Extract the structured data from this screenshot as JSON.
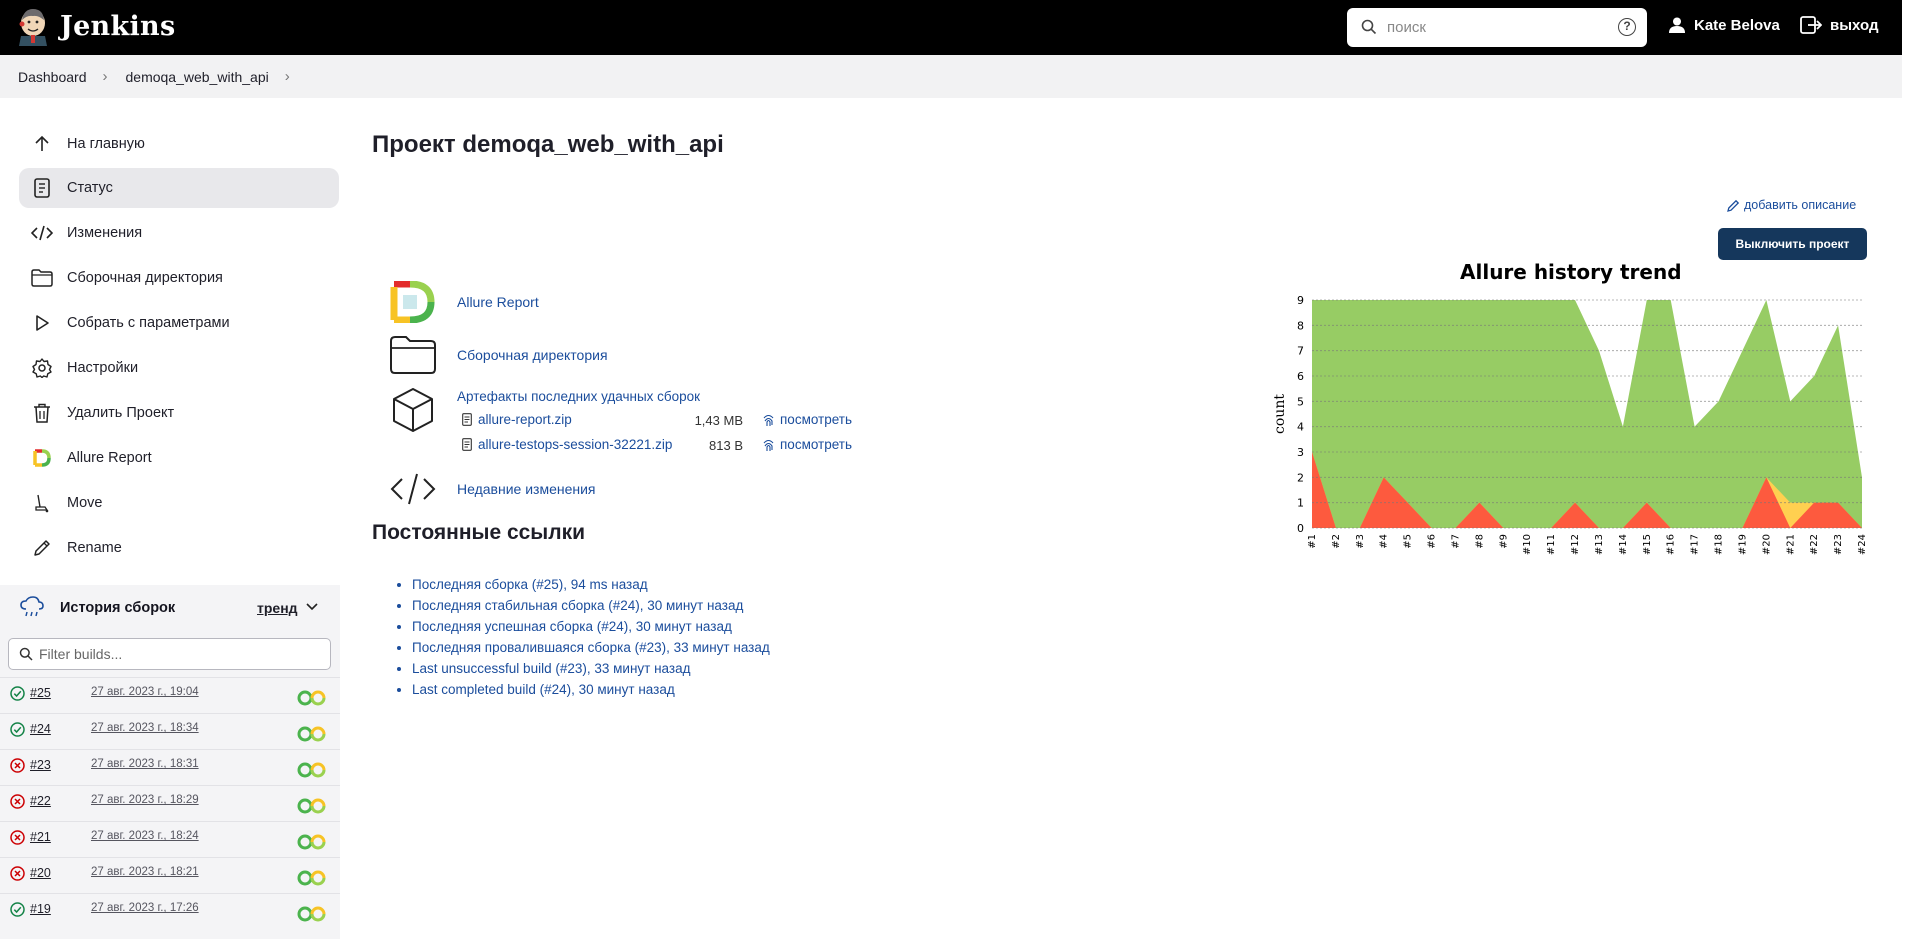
{
  "header": {
    "brand": "Jenkins",
    "search_placeholder": "поиск",
    "help": "?",
    "user": "Kate Belova",
    "logout": "выход"
  },
  "breadcrumb": [
    "Dashboard",
    "demoqa_web_with_api"
  ],
  "sidebar": {
    "items": [
      {
        "label": "На главную",
        "icon": "arrow-up-icon"
      },
      {
        "label": "Статус",
        "icon": "document-icon"
      },
      {
        "label": "Изменения",
        "icon": "code-icon"
      },
      {
        "label": "Сборочная директория",
        "icon": "folder-icon"
      },
      {
        "label": "Собрать с параметрами",
        "icon": "play-icon"
      },
      {
        "label": "Настройки",
        "icon": "gear-icon"
      },
      {
        "label": "Удалить Проект",
        "icon": "trash-icon"
      },
      {
        "label": "Allure Report",
        "icon": "allure-icon"
      },
      {
        "label": "Move",
        "icon": "move-icon"
      },
      {
        "label": "Rename",
        "icon": "pencil-icon"
      }
    ],
    "history": {
      "title": "История сборок",
      "trend": "тренд",
      "filter_placeholder": "Filter builds...",
      "builds": [
        {
          "num": "#25",
          "date": "27 авг. 2023 г., 19:04",
          "status": "success"
        },
        {
          "num": "#24",
          "date": "27 авг. 2023 г., 18:34",
          "status": "success"
        },
        {
          "num": "#23",
          "date": "27 авг. 2023 г., 18:31",
          "status": "failed"
        },
        {
          "num": "#22",
          "date": "27 авг. 2023 г., 18:29",
          "status": "failed"
        },
        {
          "num": "#21",
          "date": "27 авг. 2023 г., 18:24",
          "status": "failed"
        },
        {
          "num": "#20",
          "date": "27 авг. 2023 г., 18:21",
          "status": "failed"
        },
        {
          "num": "#19",
          "date": "27 авг. 2023 г., 17:26",
          "status": "success"
        }
      ]
    }
  },
  "main": {
    "title": "Проект demoqa_web_with_api",
    "add_description": "добавить описание",
    "disable_button": "Выключить проект",
    "links": {
      "allure": "Allure Report",
      "workspace": "Сборочная директория",
      "artifacts": "Артефакты последних удачных сборок",
      "changes": "Недавние изменения"
    },
    "artifacts": [
      {
        "name": "allure-report.zip",
        "size": "1,43 MB",
        "view": "посмотреть"
      },
      {
        "name": "allure-testops-session-32221.zip",
        "size": "813 B",
        "view": "посмотреть"
      }
    ],
    "permalinks_title": "Постоянные ссылки",
    "permalinks": [
      "Последняя сборка (#25), 94 ms назад",
      "Последняя стабильная сборка (#24), 30 минут назад",
      "Последняя успешная сборка (#24), 30 минут назад",
      "Последняя провалившаяся сборка (#23), 33 минут назад",
      "Last unsuccessful build (#23), 33 минут назад",
      "Last completed build (#24), 30 минут назад"
    ]
  },
  "chart_data": {
    "type": "area",
    "title": "Allure history trend",
    "ylabel": "count",
    "xlabel": "",
    "ylim": [
      0,
      9
    ],
    "grid": true,
    "categories": [
      "#1",
      "#2",
      "#3",
      "#4",
      "#5",
      "#6",
      "#7",
      "#8",
      "#9",
      "#10",
      "#11",
      "#12",
      "#13",
      "#14",
      "#15",
      "#16",
      "#17",
      "#18",
      "#19",
      "#20",
      "#21",
      "#22",
      "#23",
      "#24"
    ],
    "series": [
      {
        "color": "#fd5a3e",
        "values": [
          3,
          0,
          0,
          2,
          1,
          0,
          0,
          1,
          0,
          0,
          0,
          1,
          0,
          0,
          1,
          0,
          0,
          0,
          0,
          2,
          0,
          1,
          1,
          0
        ]
      },
      {
        "color": "#ffd050",
        "values": [
          0,
          0,
          0,
          0,
          0,
          0,
          0,
          0,
          0,
          0,
          0,
          0,
          0,
          0,
          0,
          0,
          0,
          0,
          0,
          0,
          1,
          0,
          0,
          0
        ]
      },
      {
        "color": "#97cc64",
        "values": [
          9,
          9,
          9,
          9,
          9,
          9,
          9,
          9,
          9,
          9,
          9,
          9,
          7,
          4,
          9,
          9,
          4,
          5,
          7,
          9,
          4,
          5,
          7,
          2
        ]
      }
    ]
  }
}
